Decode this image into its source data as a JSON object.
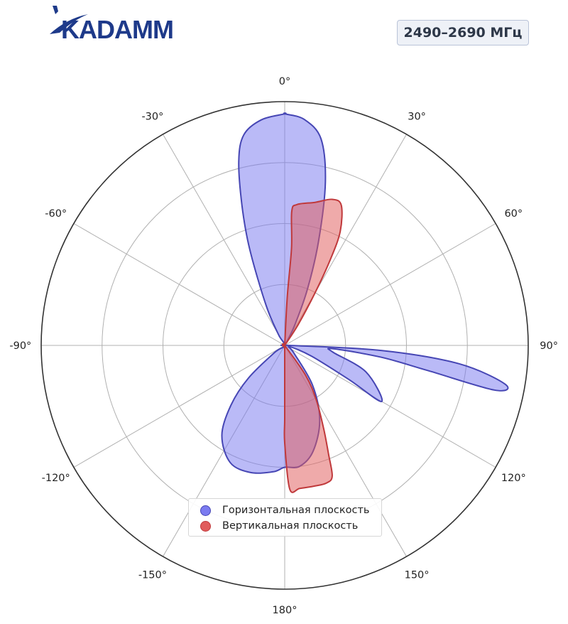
{
  "logo": {
    "text": "KADAMM",
    "color": "#1e3a8a"
  },
  "badge": {
    "text": "2490–2690 МГц"
  },
  "chart_data": {
    "type": "polar",
    "angle_unit": "deg",
    "zero_location": "top",
    "direction": "clockwise",
    "r_max": 1.0,
    "r_gridlines": [
      0.25,
      0.5,
      0.75,
      1.0
    ],
    "angle_ticks": [
      {
        "angle": 0,
        "label": "0°"
      },
      {
        "angle": 30,
        "label": "30°"
      },
      {
        "angle": 60,
        "label": "60°"
      },
      {
        "angle": 90,
        "label": "90°"
      },
      {
        "angle": 120,
        "label": "120°"
      },
      {
        "angle": 150,
        "label": "150°"
      },
      {
        "angle": 180,
        "label": "180°"
      },
      {
        "angle": -150,
        "label": "-150°"
      },
      {
        "angle": -120,
        "label": "-120°"
      },
      {
        "angle": -90,
        "label": "-90°"
      },
      {
        "angle": -60,
        "label": "-60°"
      },
      {
        "angle": -30,
        "label": "-30°"
      }
    ],
    "grid": true,
    "legend_position": "bottom-center",
    "series": [
      {
        "name": "Горизонтальная плоскость",
        "color": "#7b7bf0",
        "stroke": "#4646b4",
        "points": [
          [
            0,
            0.95
          ],
          [
            5,
            0.93
          ],
          [
            10,
            0.86
          ],
          [
            14,
            0.69
          ],
          [
            18,
            0.45
          ],
          [
            22,
            0.25
          ],
          [
            26,
            0.1
          ],
          [
            30,
            0.02
          ],
          [
            60,
            0.0
          ],
          [
            90,
            0.02
          ],
          [
            93,
            0.4
          ],
          [
            96,
            0.72
          ],
          [
            100,
            0.92
          ],
          [
            102,
            0.88
          ],
          [
            100,
            0.6
          ],
          [
            97,
            0.4
          ],
          [
            94,
            0.2
          ],
          [
            98,
            0.2
          ],
          [
            108,
            0.35
          ],
          [
            120,
            0.46
          ],
          [
            118,
            0.3
          ],
          [
            112,
            0.12
          ],
          [
            105,
            0.02
          ],
          [
            130,
            0.05
          ],
          [
            145,
            0.2
          ],
          [
            155,
            0.34
          ],
          [
            165,
            0.45
          ],
          [
            173,
            0.5
          ],
          [
            180,
            0.5
          ],
          [
            185,
            0.52
          ],
          [
            195,
            0.54
          ],
          [
            205,
            0.53
          ],
          [
            215,
            0.45
          ],
          [
            222,
            0.33
          ],
          [
            228,
            0.2
          ],
          [
            235,
            0.05
          ],
          [
            300,
            0.0
          ],
          [
            330,
            0.05
          ],
          [
            335,
            0.18
          ],
          [
            340,
            0.42
          ],
          [
            343,
            0.6
          ],
          [
            346,
            0.78
          ],
          [
            349,
            0.88
          ],
          [
            354,
            0.93
          ],
          [
            360,
            0.95
          ]
        ]
      },
      {
        "name": "Вертикальная плоскость",
        "color": "#e05c5c",
        "stroke": "#c0393b",
        "points": [
          [
            0,
            0.0
          ],
          [
            3,
            0.2
          ],
          [
            4,
            0.4
          ],
          [
            3,
            0.55
          ],
          [
            5,
            0.58
          ],
          [
            12,
            0.6
          ],
          [
            18,
            0.63
          ],
          [
            22,
            0.62
          ],
          [
            26,
            0.52
          ],
          [
            28,
            0.4
          ],
          [
            30,
            0.25
          ],
          [
            33,
            0.1
          ],
          [
            38,
            0.0
          ],
          [
            130,
            0.0
          ],
          [
            145,
            0.15
          ],
          [
            150,
            0.26
          ],
          [
            155,
            0.38
          ],
          [
            158,
            0.48
          ],
          [
            160,
            0.57
          ],
          [
            163,
            0.59
          ],
          [
            168,
            0.59
          ],
          [
            174,
            0.59
          ],
          [
            178,
            0.59
          ],
          [
            180,
            0.4
          ],
          [
            180,
            0.3
          ],
          [
            180,
            0.1
          ],
          [
            180,
            0.0
          ]
        ]
      }
    ]
  }
}
